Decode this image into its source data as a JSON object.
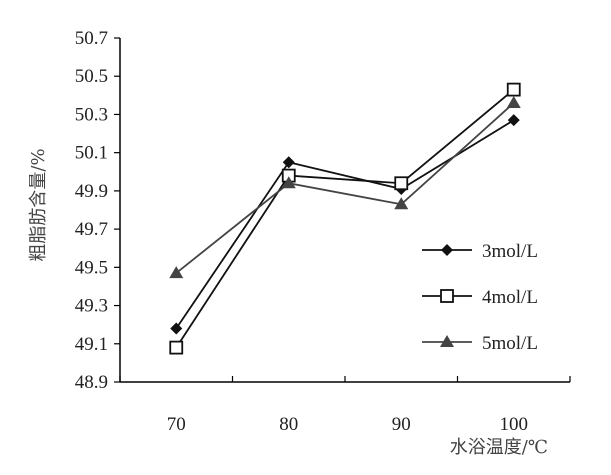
{
  "chart_data": {
    "type": "line",
    "title": "",
    "xlabel": "水浴温度/℃",
    "ylabel": "粗脂肪含量/%",
    "categories": [
      "70",
      "80",
      "90",
      "100"
    ],
    "ylim": [
      48.9,
      50.7
    ],
    "yticks": [
      "48.9",
      "49.1",
      "49.3",
      "49.5",
      "49.7",
      "49.9",
      "50.1",
      "50.3",
      "50.5",
      "50.7"
    ],
    "grid": false,
    "legend_position": "right",
    "series": [
      {
        "name": "3mol/L",
        "values": [
          49.18,
          50.05,
          49.91,
          50.27
        ],
        "marker": "diamond",
        "color": "#111111"
      },
      {
        "name": "4mol/L",
        "values": [
          49.08,
          49.98,
          49.94,
          50.43
        ],
        "marker": "square-open",
        "color": "#111111"
      },
      {
        "name": "5mol/L",
        "values": [
          49.47,
          49.94,
          49.83,
          50.36
        ],
        "marker": "triangle",
        "color": "#444444"
      }
    ]
  }
}
